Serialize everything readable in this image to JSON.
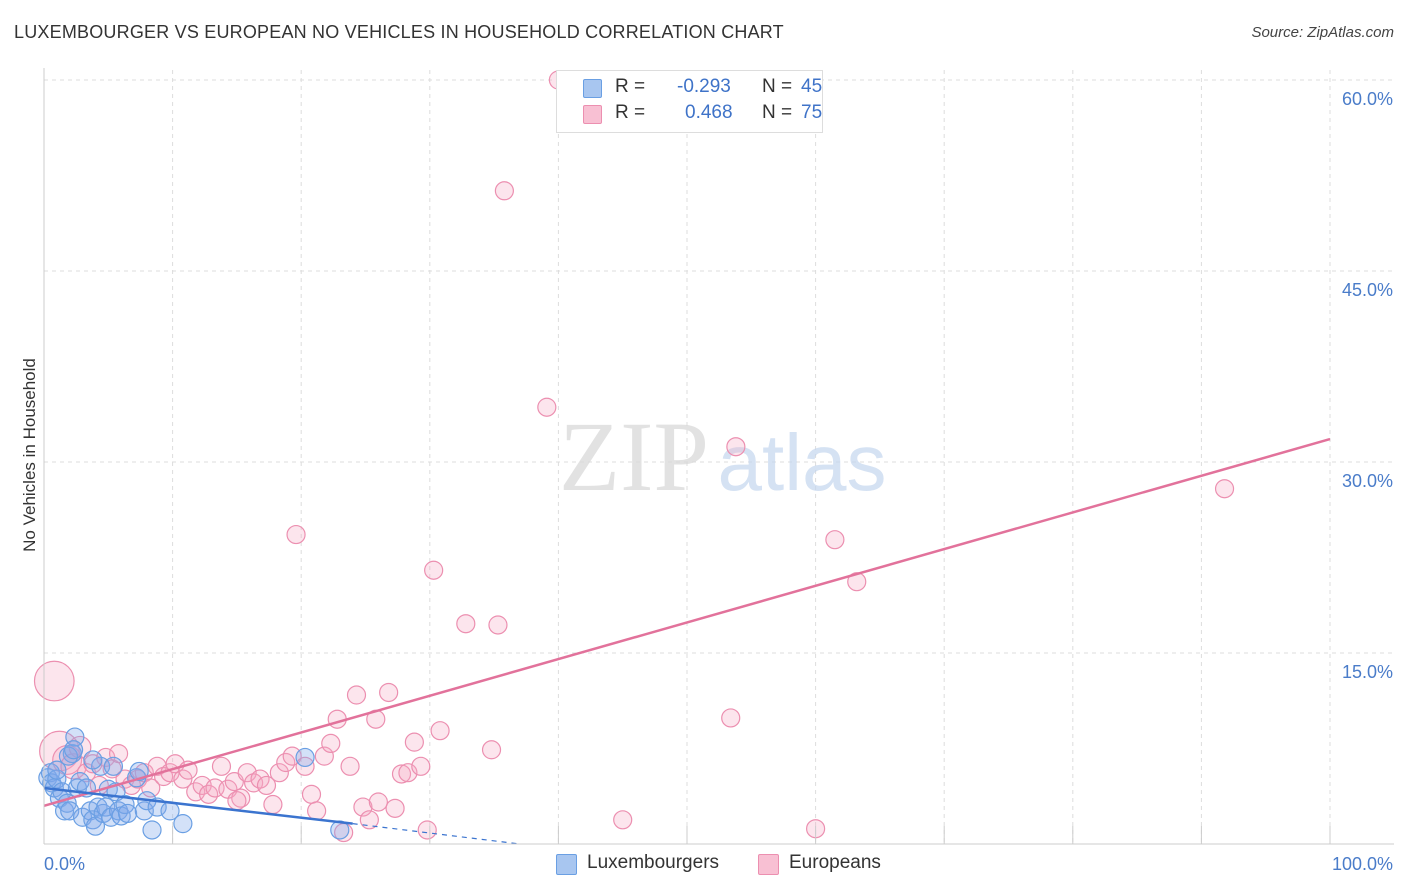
{
  "title": "LUXEMBOURGER VS EUROPEAN NO VEHICLES IN HOUSEHOLD CORRELATION CHART",
  "source": "Source: ZipAtlas.com",
  "watermark": {
    "zip": "ZIP",
    "atlas": "atlas"
  },
  "colors": {
    "blue": "#6a9fe3",
    "blue_fill": "rgba(130,170,235,0.35)",
    "blue_line": "#3b74cf",
    "pink": "#ec8fb0",
    "pink_fill": "rgba(245,170,195,0.30)",
    "pink_line": "#e2729b",
    "grid": "#dddddd",
    "tick_text": "#4a7cc9"
  },
  "legend": {
    "rows": [
      {
        "r_label": "R =",
        "r_value": "-0.293",
        "n_label": "N =",
        "n_value": "45",
        "color": "#a8c6f0",
        "border": "#6a9fe3"
      },
      {
        "r_label": "R =",
        "r_value": "0.468",
        "n_label": "N =",
        "n_value": "75",
        "color": "#f8c0d3",
        "border": "#ec8fb0"
      }
    ]
  },
  "bottom_legend": [
    {
      "label": "Luxembourgers",
      "color": "#a8c6f0",
      "border": "#6a9fe3"
    },
    {
      "label": "Europeans",
      "color": "#f8c0d3",
      "border": "#ec8fb0"
    }
  ],
  "chart_data": {
    "type": "scatter",
    "title": "LUXEMBOURGER VS EUROPEAN NO VEHICLES IN HOUSEHOLD CORRELATION CHART",
    "xlabel": "",
    "ylabel": "No Vehicles in Household",
    "xlim": [
      0,
      100
    ],
    "ylim": [
      0,
      60
    ],
    "x_tick_labels": [
      {
        "value": 0,
        "label": "0.0%"
      },
      {
        "value": 100,
        "label": "100.0%"
      }
    ],
    "y_tick_labels": [
      {
        "value": 15,
        "label": "15.0%"
      },
      {
        "value": 30,
        "label": "30.0%"
      },
      {
        "value": 45,
        "label": "45.0%"
      },
      {
        "value": 60,
        "label": "60.0%"
      }
    ],
    "grid": true,
    "legend_position": "top-center",
    "series": [
      {
        "name": "Luxembourgers",
        "r": -0.293,
        "n": 45,
        "trend": {
          "x0": 0,
          "y0": 4.4,
          "x1": 24,
          "y1": 1.6,
          "dashed_to_x": 37,
          "dashed_to_y": 0.0
        },
        "points": [
          [
            0.3,
            5.2,
            1
          ],
          [
            0.5,
            5.6,
            1
          ],
          [
            0.6,
            4.8,
            1
          ],
          [
            0.8,
            4.4,
            1
          ],
          [
            1.0,
            5.1,
            1
          ],
          [
            1.2,
            3.6,
            1
          ],
          [
            1.4,
            4.1,
            1
          ],
          [
            1.6,
            2.6,
            1
          ],
          [
            1.8,
            3.2,
            1
          ],
          [
            2.0,
            2.6,
            1
          ],
          [
            2.2,
            7.1,
            1
          ],
          [
            2.4,
            8.4,
            1
          ],
          [
            2.6,
            4.4,
            1
          ],
          [
            2.8,
            4.9,
            1
          ],
          [
            3.0,
            2.1,
            1
          ],
          [
            3.3,
            4.4,
            1
          ],
          [
            3.6,
            2.6,
            1
          ],
          [
            3.8,
            1.9,
            1
          ],
          [
            4.0,
            1.4,
            1
          ],
          [
            4.2,
            2.9,
            1
          ],
          [
            4.4,
            6.1,
            1
          ],
          [
            4.6,
            2.4,
            1
          ],
          [
            4.8,
            2.9,
            1
          ],
          [
            5.0,
            4.3,
            1
          ],
          [
            5.2,
            2.1,
            1
          ],
          [
            5.4,
            6.1,
            1
          ],
          [
            5.6,
            4.1,
            1
          ],
          [
            5.8,
            2.6,
            1
          ],
          [
            6.0,
            2.2,
            1
          ],
          [
            6.3,
            3.1,
            1
          ],
          [
            6.5,
            2.4,
            1
          ],
          [
            7.2,
            5.2,
            1
          ],
          [
            7.4,
            5.7,
            1
          ],
          [
            7.8,
            2.6,
            1
          ],
          [
            8.0,
            3.4,
            1
          ],
          [
            8.4,
            1.1,
            1
          ],
          [
            8.8,
            2.9,
            1
          ],
          [
            9.8,
            2.6,
            1
          ],
          [
            10.8,
            1.6,
            1
          ],
          [
            20.3,
            6.8,
            1
          ],
          [
            23.0,
            1.1,
            1
          ],
          [
            1.0,
            5.8,
            1
          ],
          [
            1.9,
            6.9,
            1
          ],
          [
            2.3,
            7.4,
            1
          ],
          [
            3.8,
            6.6,
            1
          ]
        ]
      },
      {
        "name": "Europeans",
        "r": 0.468,
        "n": 75,
        "trend": {
          "x0": 0,
          "y0": 3.0,
          "x1": 100,
          "y1": 31.8
        },
        "points": [
          [
            0.8,
            12.8,
            2.2
          ],
          [
            1.2,
            7.3,
            2.2
          ],
          [
            1.8,
            6.6,
            1.6
          ],
          [
            2.3,
            6.1,
            1.4
          ],
          [
            2.8,
            7.6,
            1.2
          ],
          [
            3.3,
            5.6,
            1
          ],
          [
            3.8,
            6.3,
            1
          ],
          [
            4.3,
            4.6,
            1
          ],
          [
            4.8,
            6.8,
            1
          ],
          [
            5.3,
            5.9,
            1
          ],
          [
            5.8,
            7.1,
            1
          ],
          [
            6.3,
            5.1,
            1
          ],
          [
            6.8,
            4.6,
            1
          ],
          [
            7.3,
            5.1,
            1
          ],
          [
            7.8,
            5.6,
            1
          ],
          [
            8.3,
            4.4,
            1
          ],
          [
            8.8,
            6.1,
            1
          ],
          [
            9.3,
            5.3,
            1
          ],
          [
            9.8,
            5.6,
            1
          ],
          [
            10.2,
            6.3,
            1
          ],
          [
            10.8,
            5.1,
            1
          ],
          [
            11.2,
            5.8,
            1
          ],
          [
            11.8,
            4.1,
            1
          ],
          [
            12.3,
            4.6,
            1
          ],
          [
            12.8,
            3.9,
            1
          ],
          [
            13.3,
            4.4,
            1
          ],
          [
            13.8,
            6.1,
            1
          ],
          [
            14.3,
            4.3,
            1
          ],
          [
            14.8,
            4.9,
            1
          ],
          [
            15.3,
            3.6,
            1
          ],
          [
            15.8,
            5.6,
            1
          ],
          [
            16.3,
            4.8,
            1
          ],
          [
            16.8,
            5.1,
            1
          ],
          [
            17.3,
            4.6,
            1
          ],
          [
            17.8,
            3.1,
            1
          ],
          [
            18.3,
            5.6,
            1
          ],
          [
            18.8,
            6.4,
            1
          ],
          [
            19.3,
            6.9,
            1
          ],
          [
            19.6,
            24.3,
            1
          ],
          [
            20.3,
            6.1,
            1
          ],
          [
            20.8,
            3.9,
            1
          ],
          [
            21.2,
            2.6,
            1
          ],
          [
            21.8,
            6.9,
            1
          ],
          [
            22.3,
            7.9,
            1
          ],
          [
            22.8,
            9.8,
            1
          ],
          [
            23.3,
            0.9,
            1
          ],
          [
            23.8,
            6.1,
            1
          ],
          [
            24.3,
            11.7,
            1
          ],
          [
            24.8,
            2.9,
            1
          ],
          [
            25.3,
            1.9,
            1
          ],
          [
            25.8,
            9.8,
            1
          ],
          [
            26.8,
            11.9,
            1
          ],
          [
            27.3,
            2.8,
            1
          ],
          [
            27.8,
            5.5,
            1
          ],
          [
            28.3,
            5.6,
            1
          ],
          [
            28.8,
            8.0,
            1
          ],
          [
            29.3,
            6.1,
            1
          ],
          [
            29.8,
            1.1,
            1
          ],
          [
            30.3,
            21.5,
            1
          ],
          [
            30.8,
            8.9,
            1
          ],
          [
            32.8,
            17.3,
            1
          ],
          [
            35.3,
            17.2,
            1
          ],
          [
            34.8,
            7.4,
            1
          ],
          [
            35.8,
            51.3,
            1
          ],
          [
            39.1,
            34.3,
            1
          ],
          [
            40.0,
            60.0,
            1
          ],
          [
            45.0,
            1.9,
            1
          ],
          [
            53.4,
            9.9,
            1
          ],
          [
            53.8,
            31.2,
            1
          ],
          [
            60.0,
            1.2,
            1
          ],
          [
            61.5,
            23.9,
            1
          ],
          [
            63.2,
            20.6,
            1
          ],
          [
            91.8,
            27.9,
            1
          ],
          [
            15.0,
            3.4,
            1
          ],
          [
            26.0,
            3.3,
            1
          ]
        ]
      }
    ]
  },
  "axis_labels": {
    "y": "No Vehicles in Household"
  }
}
